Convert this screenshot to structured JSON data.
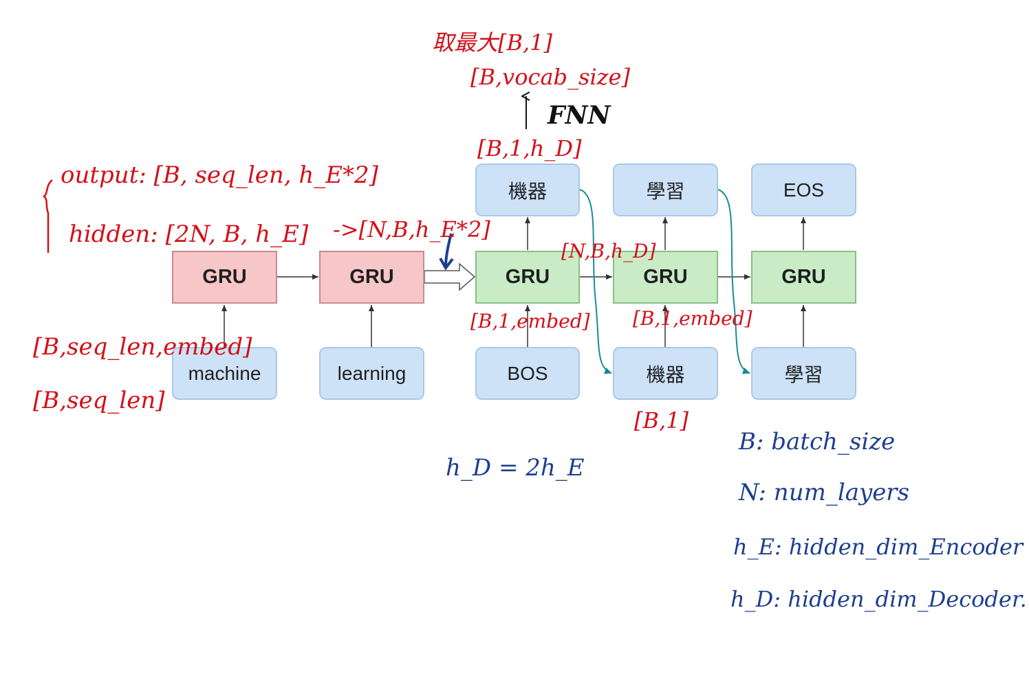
{
  "encoder": {
    "gru_label": "GRU",
    "inputs": [
      "machine",
      "learning"
    ]
  },
  "decoder": {
    "gru_label": "GRU",
    "inputs": [
      "BOS",
      "機器",
      "學習"
    ],
    "outputs": [
      "機器",
      "學習",
      "EOS"
    ]
  },
  "annotations": {
    "argmax": "取最大[B,1]",
    "vocab_shape": "[B,vocab_size]",
    "fnn": "FNN",
    "dec_out_shape": "[B,1,h_D]",
    "enc_output": "output:  [B, seq_len, h_E*2]",
    "enc_hidden": "hidden: [2N, B, h_E]",
    "hidden_reshape": "->[N,B,h_E*2]",
    "dec_hidden_shape": "[N,B,h_D]",
    "embed_shape_1": "[B,1,embed]",
    "embed_shape_2": "[B,1,embed]",
    "enc_embed_shape": "[B,seq_len,embed]",
    "enc_input_shape": "[B,seq_len]",
    "dec_input_shape": "[B,1]",
    "hd_relation": "h_D = 2h_E"
  },
  "legend": [
    "B: batch_size",
    "N: num_layers",
    "h_E: hidden_dim_Encoder",
    "h_D: hidden_dim_Decoder."
  ],
  "colors": {
    "encoder_fill": "#f7c6c9",
    "decoder_fill": "#c9ecc6",
    "token_fill": "#cde2f7",
    "annotation_red": "#d40f19",
    "annotation_blue": "#1d3f8f",
    "feedback_arrow": "#1b8a9a"
  }
}
